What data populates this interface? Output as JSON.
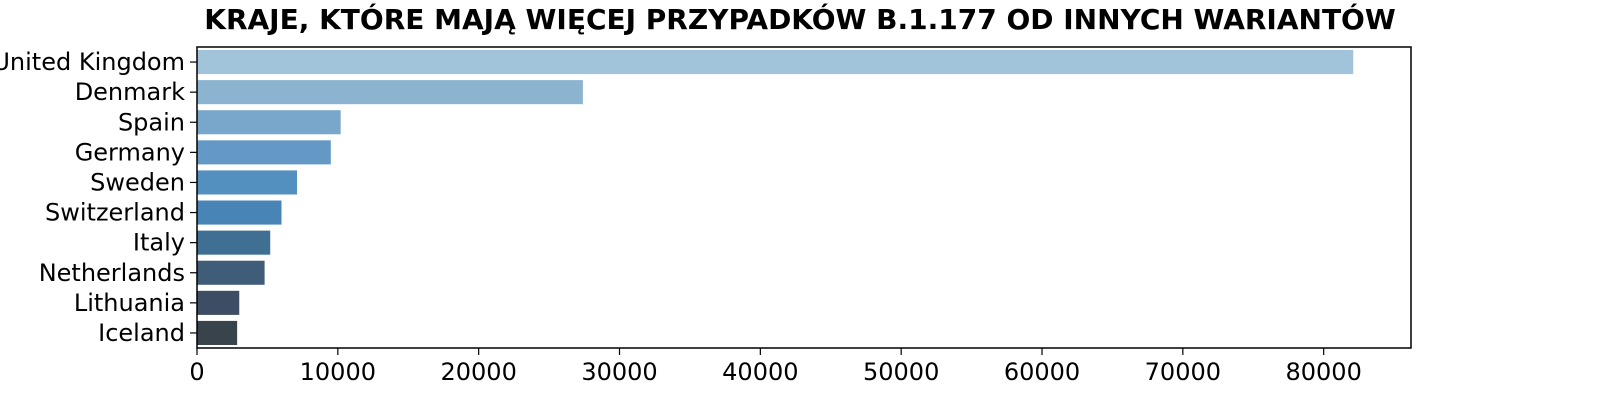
{
  "chart_data": {
    "type": "bar",
    "orientation": "horizontal",
    "title": "KRAJE, KTÓRE MAJĄ WIĘCEJ PRZYPADKÓW B.1.177 OD INNYCH WARIANTÓW",
    "xlabel": "",
    "ylabel": "",
    "categories": [
      "United Kingdom",
      "Denmark",
      "Spain",
      "Germany",
      "Sweden",
      "Switzerland",
      "Italy",
      "Netherlands",
      "Lithuania",
      "Iceland"
    ],
    "values": [
      82100,
      27400,
      10200,
      9500,
      7100,
      6000,
      5200,
      4800,
      3000,
      2850
    ],
    "colors": [
      "#a1c4da",
      "#8cb4d0",
      "#78a7cb",
      "#6499c6",
      "#5390bf",
      "#4884b6",
      "#3f6f93",
      "#3f5c78",
      "#3d4d63",
      "#39434b"
    ],
    "xlim": [
      0,
      86200
    ],
    "xticks": [
      0,
      10000,
      20000,
      30000,
      40000,
      50000,
      60000,
      70000,
      80000
    ],
    "xtick_labels": [
      "0",
      "10000",
      "20000",
      "30000",
      "40000",
      "50000",
      "60000",
      "70000",
      "80000"
    ],
    "grid": false,
    "legend": "none"
  }
}
